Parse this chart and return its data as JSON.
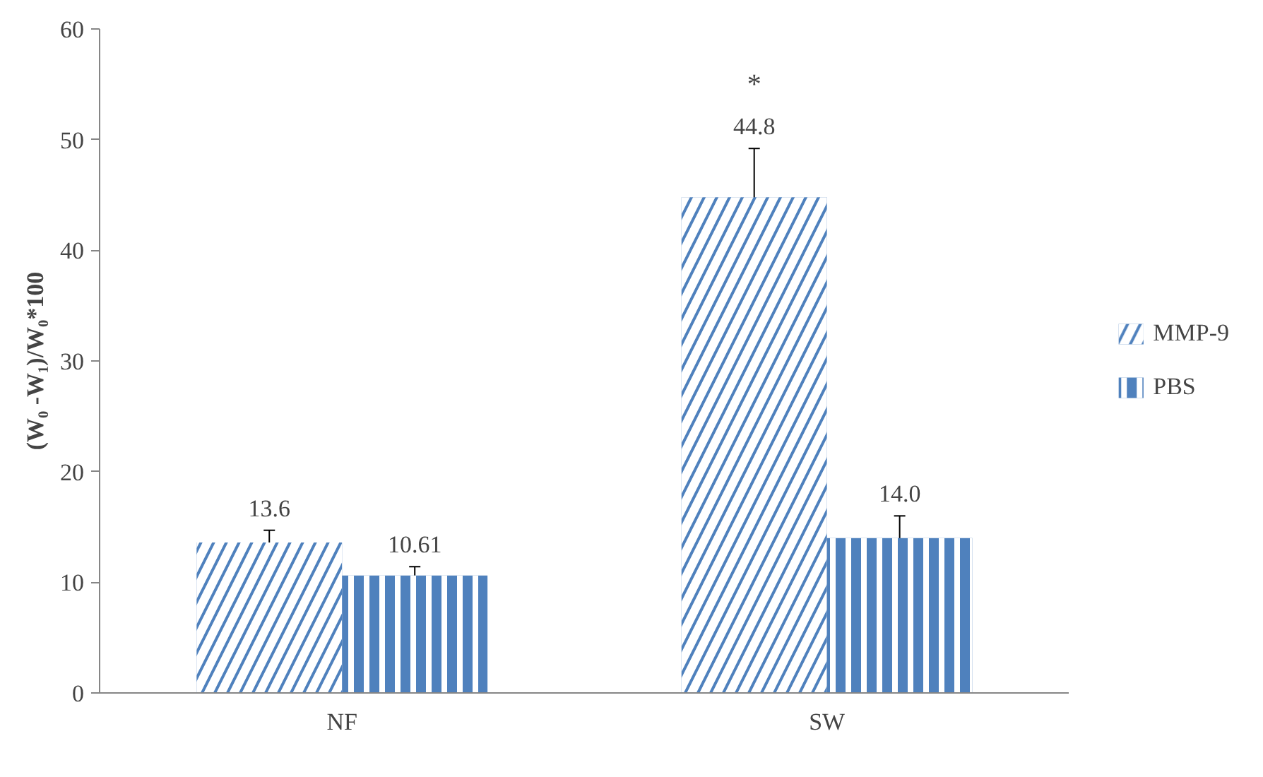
{
  "chart_data": {
    "type": "bar",
    "ylabel": "(W₀ -W₁)/W₀*100",
    "categories": [
      "NF",
      "SW"
    ],
    "series": [
      {
        "name": "MMP-9",
        "color": "#4f81bd",
        "values": [
          13.6,
          44.8
        ],
        "errors": [
          1.1,
          4.4
        ],
        "value_labels": [
          "13.6",
          "44.8"
        ]
      },
      {
        "name": "PBS",
        "color": "#4f81bd",
        "values": [
          10.61,
          14.0
        ],
        "errors": [
          0.8,
          2.0
        ],
        "value_labels": [
          "10.61",
          "14.0"
        ]
      }
    ],
    "annotations": [
      "*"
    ],
    "ylim": [
      0,
      60
    ],
    "yticks": [
      0,
      10,
      20,
      30,
      40,
      50,
      60
    ],
    "grid": false,
    "legend": "right"
  }
}
